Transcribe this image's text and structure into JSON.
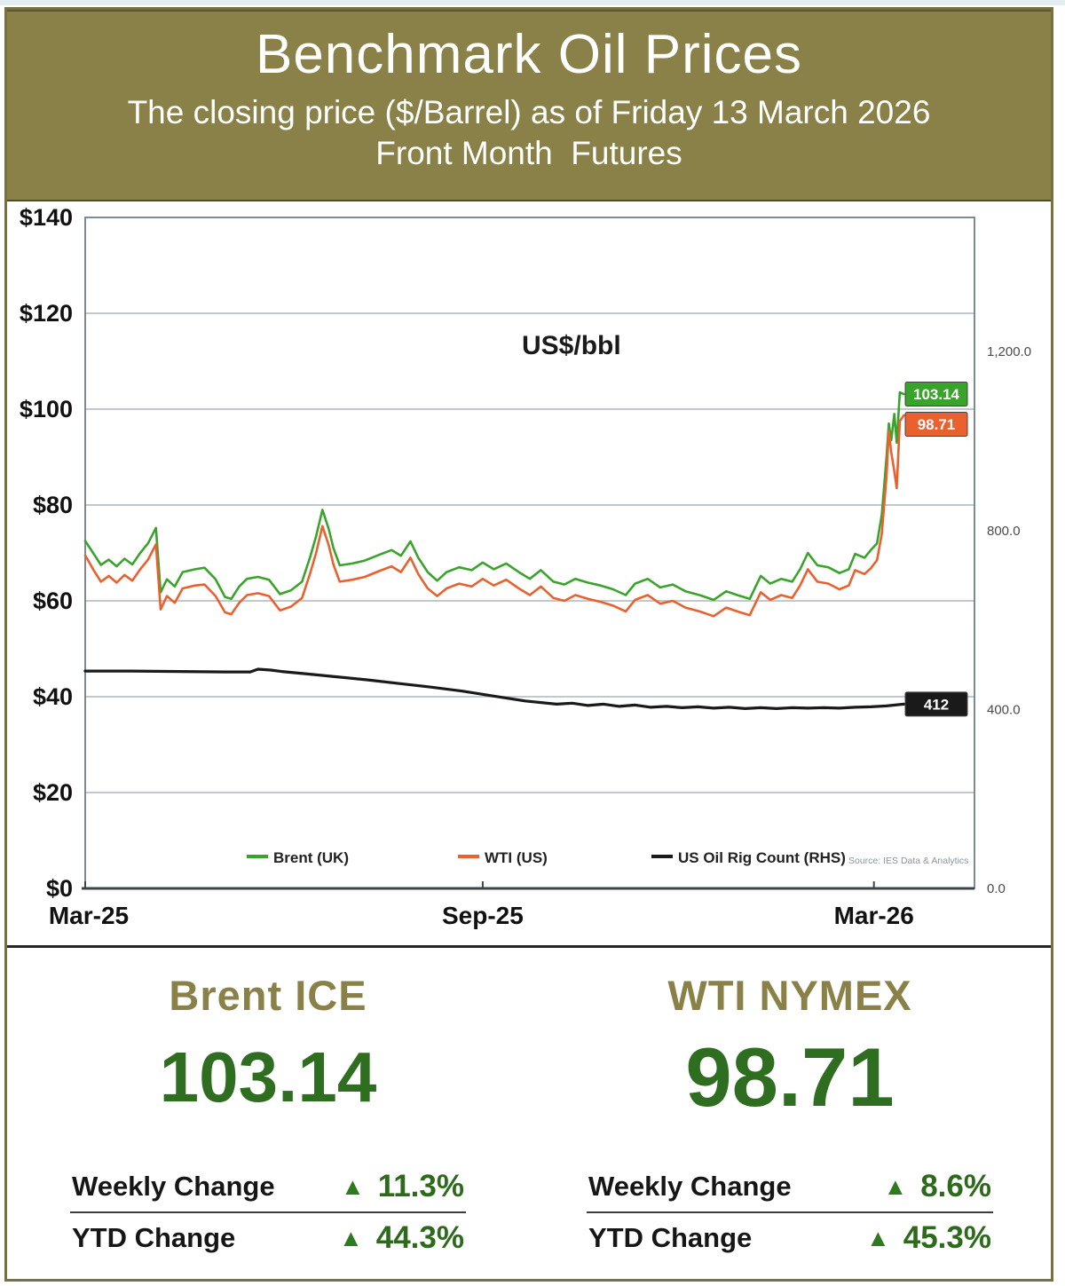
{
  "header": {
    "title": "Benchmark Oil Prices",
    "subtitle1": "The closing price ($/Barrel) as of Friday 13 March 2026",
    "subtitle2": "Front Month  Futures"
  },
  "icons": {
    "up_arrow": "▲"
  },
  "colors": {
    "olive": "#8a8148",
    "brent_green": "#3aa32c",
    "wti_orange": "#e8612f",
    "rig_black": "#1a1a1a",
    "dark_green": "#2f6e20",
    "grid_gray": "#aeb7bb"
  },
  "chart_data": {
    "type": "line",
    "title": "US$/bbl",
    "source_note": "Source: IES Data & Analytics",
    "legend_position": "bottom-inside",
    "grid": true,
    "x_axis": {
      "max_weeks": 56.6,
      "ticks": [
        {
          "x": 0,
          "label": "Mar-25"
        },
        {
          "x": 25.3,
          "label": "Sep-25"
        },
        {
          "x": 50.2,
          "label": "Mar-26"
        }
      ]
    },
    "y_left": {
      "min": 0,
      "max": 140,
      "tick_step": 20,
      "tick_prefix": "$"
    },
    "y_right": {
      "min": 0,
      "max": 1500,
      "labels": [
        {
          "v": 0,
          "t": "0.0"
        },
        {
          "v": 400,
          "t": "400.0"
        },
        {
          "v": 800,
          "t": "800.0"
        },
        {
          "v": 1200,
          "t": "1,200.0"
        }
      ]
    },
    "series": [
      {
        "id": "brent-line",
        "name": "Brent (UK)",
        "axis": "left",
        "color": "#3aa32c",
        "width": 2.6,
        "end_label": "103.14",
        "end_value": 103.14,
        "points": [
          [
            0,
            72.5
          ],
          [
            0.5,
            70
          ],
          [
            1,
            67.5
          ],
          [
            1.5,
            68.6
          ],
          [
            2,
            67.2
          ],
          [
            2.5,
            68.8
          ],
          [
            3,
            67.6
          ],
          [
            3.5,
            70
          ],
          [
            4,
            72
          ],
          [
            4.5,
            75.2
          ],
          [
            4.8,
            61.8
          ],
          [
            5.2,
            64.5
          ],
          [
            5.7,
            63
          ],
          [
            6.2,
            66
          ],
          [
            7,
            66.6
          ],
          [
            7.6,
            66.9
          ],
          [
            8.3,
            64.5
          ],
          [
            8.9,
            60.8
          ],
          [
            9.3,
            60.4
          ],
          [
            9.8,
            63
          ],
          [
            10.3,
            64.6
          ],
          [
            11,
            65
          ],
          [
            11.7,
            64.4
          ],
          [
            12.4,
            61.4
          ],
          [
            13.1,
            62.2
          ],
          [
            13.8,
            64
          ],
          [
            14.3,
            69
          ],
          [
            14.7,
            73.5
          ],
          [
            15.1,
            79
          ],
          [
            15.5,
            75
          ],
          [
            15.8,
            71
          ],
          [
            16.2,
            67.4
          ],
          [
            17,
            67.8
          ],
          [
            17.8,
            68.4
          ],
          [
            18.7,
            69.6
          ],
          [
            19.5,
            70.6
          ],
          [
            20.1,
            69.4
          ],
          [
            20.7,
            72.4
          ],
          [
            21.2,
            69
          ],
          [
            21.8,
            66
          ],
          [
            22.4,
            64.2
          ],
          [
            23,
            66
          ],
          [
            23.8,
            67
          ],
          [
            24.6,
            66.4
          ],
          [
            25.3,
            68
          ],
          [
            26,
            66.6
          ],
          [
            26.8,
            67.8
          ],
          [
            27.6,
            66
          ],
          [
            28.3,
            64.6
          ],
          [
            29,
            66.4
          ],
          [
            29.8,
            64
          ],
          [
            30.5,
            63.4
          ],
          [
            31.2,
            64.6
          ],
          [
            32,
            63.8
          ],
          [
            32.8,
            63.2
          ],
          [
            33.6,
            62.4
          ],
          [
            34.4,
            61.2
          ],
          [
            35,
            63.6
          ],
          [
            35.8,
            64.6
          ],
          [
            36.6,
            62.8
          ],
          [
            37.4,
            63.4
          ],
          [
            38.2,
            62
          ],
          [
            39.1,
            61.2
          ],
          [
            40,
            60.2
          ],
          [
            40.8,
            62
          ],
          [
            41.5,
            61.2
          ],
          [
            42.3,
            60.4
          ],
          [
            43,
            65.2
          ],
          [
            43.6,
            63.6
          ],
          [
            44.3,
            64.6
          ],
          [
            45,
            64
          ],
          [
            45.5,
            66.6
          ],
          [
            46,
            70
          ],
          [
            46.6,
            67.4
          ],
          [
            47.3,
            67
          ],
          [
            48,
            65.8
          ],
          [
            48.6,
            66.6
          ],
          [
            49,
            69.8
          ],
          [
            49.6,
            69
          ],
          [
            50,
            70.6
          ],
          [
            50.4,
            72
          ],
          [
            50.7,
            78
          ],
          [
            51,
            90
          ],
          [
            51.15,
            97
          ],
          [
            51.3,
            93.5
          ],
          [
            51.5,
            99
          ],
          [
            51.65,
            93
          ],
          [
            51.85,
            103.5
          ],
          [
            52.1,
            103.14
          ]
        ]
      },
      {
        "id": "wti-line",
        "name": "WTI (US)",
        "axis": "left",
        "color": "#e8612f",
        "width": 2.6,
        "end_label": "98.71",
        "end_value": 98.71,
        "points": [
          [
            0,
            69.5
          ],
          [
            0.5,
            66.6
          ],
          [
            1,
            64
          ],
          [
            1.5,
            65.2
          ],
          [
            2,
            63.8
          ],
          [
            2.5,
            65.4
          ],
          [
            3,
            64.2
          ],
          [
            3.5,
            66.6
          ],
          [
            4,
            68.6
          ],
          [
            4.5,
            71.8
          ],
          [
            4.8,
            58.2
          ],
          [
            5.2,
            61
          ],
          [
            5.7,
            59.6
          ],
          [
            6.2,
            62.6
          ],
          [
            7,
            63.2
          ],
          [
            7.6,
            63.4
          ],
          [
            8.3,
            61
          ],
          [
            8.9,
            57.6
          ],
          [
            9.3,
            57.2
          ],
          [
            9.8,
            59.6
          ],
          [
            10.3,
            61.2
          ],
          [
            11,
            61.6
          ],
          [
            11.7,
            61
          ],
          [
            12.4,
            58
          ],
          [
            13.1,
            58.8
          ],
          [
            13.8,
            60.6
          ],
          [
            14.3,
            65.6
          ],
          [
            14.7,
            70
          ],
          [
            15.1,
            75.6
          ],
          [
            15.5,
            71.6
          ],
          [
            15.8,
            67.6
          ],
          [
            16.2,
            64
          ],
          [
            17,
            64.4
          ],
          [
            17.8,
            65
          ],
          [
            18.7,
            66.2
          ],
          [
            19.5,
            67.2
          ],
          [
            20.1,
            66
          ],
          [
            20.7,
            69
          ],
          [
            21.2,
            65.6
          ],
          [
            21.8,
            62.6
          ],
          [
            22.4,
            61
          ],
          [
            23,
            62.6
          ],
          [
            23.8,
            63.6
          ],
          [
            24.6,
            63
          ],
          [
            25.3,
            64.6
          ],
          [
            26,
            63.2
          ],
          [
            26.8,
            64.4
          ],
          [
            27.6,
            62.6
          ],
          [
            28.3,
            61.2
          ],
          [
            29,
            63
          ],
          [
            29.8,
            60.6
          ],
          [
            30.5,
            60
          ],
          [
            31.2,
            61.2
          ],
          [
            32,
            60.4
          ],
          [
            32.8,
            59.8
          ],
          [
            33.6,
            59
          ],
          [
            34.4,
            57.8
          ],
          [
            35,
            60.2
          ],
          [
            35.8,
            61.2
          ],
          [
            36.6,
            59.4
          ],
          [
            37.4,
            60
          ],
          [
            38.2,
            58.6
          ],
          [
            39.1,
            57.8
          ],
          [
            40,
            56.8
          ],
          [
            40.8,
            58.6
          ],
          [
            41.5,
            57.8
          ],
          [
            42.3,
            57
          ],
          [
            43,
            61.8
          ],
          [
            43.6,
            60.2
          ],
          [
            44.3,
            61.2
          ],
          [
            45,
            60.6
          ],
          [
            45.5,
            63.2
          ],
          [
            46,
            66.6
          ],
          [
            46.6,
            64
          ],
          [
            47.3,
            63.6
          ],
          [
            48,
            62.4
          ],
          [
            48.6,
            63.2
          ],
          [
            49,
            66.4
          ],
          [
            49.6,
            65.6
          ],
          [
            50,
            66.8
          ],
          [
            50.4,
            68.5
          ],
          [
            50.7,
            74
          ],
          [
            51,
            86
          ],
          [
            51.15,
            95.5
          ],
          [
            51.3,
            91
          ],
          [
            51.5,
            87
          ],
          [
            51.65,
            83.5
          ],
          [
            51.85,
            97.5
          ],
          [
            52.1,
            98.71
          ]
        ]
      },
      {
        "id": "rig-count-line",
        "name": "US Oil Rig Count (RHS)",
        "axis": "right",
        "color": "#1a1a1a",
        "width": 3.2,
        "end_label": "412",
        "end_value": 412,
        "points": [
          [
            0,
            486
          ],
          [
            3,
            486
          ],
          [
            6,
            485
          ],
          [
            9,
            484
          ],
          [
            10.5,
            484
          ],
          [
            11,
            490
          ],
          [
            11.8,
            488
          ],
          [
            12.5,
            485
          ],
          [
            14,
            480
          ],
          [
            16,
            473
          ],
          [
            18,
            466
          ],
          [
            20,
            458
          ],
          [
            22,
            450
          ],
          [
            24,
            441
          ],
          [
            26,
            430
          ],
          [
            28,
            419
          ],
          [
            30,
            412
          ],
          [
            31,
            414
          ],
          [
            32,
            409
          ],
          [
            33,
            412
          ],
          [
            34,
            407
          ],
          [
            35,
            410
          ],
          [
            36,
            405
          ],
          [
            37,
            407
          ],
          [
            38,
            404
          ],
          [
            39,
            406
          ],
          [
            40,
            403
          ],
          [
            41,
            405
          ],
          [
            42,
            402
          ],
          [
            43,
            404
          ],
          [
            44,
            402
          ],
          [
            45,
            404
          ],
          [
            46,
            403
          ],
          [
            47,
            404
          ],
          [
            48,
            403
          ],
          [
            49,
            405
          ],
          [
            50,
            406
          ],
          [
            51,
            408
          ],
          [
            52.1,
            412
          ]
        ]
      }
    ]
  },
  "stats": {
    "left": {
      "title": "Brent ICE",
      "value": "103.14",
      "rows": [
        {
          "label": "Weekly Change",
          "change": "11.3%"
        },
        {
          "label": "YTD Change",
          "change": "44.3%"
        }
      ]
    },
    "right": {
      "title": "WTI NYMEX",
      "value": "98.71",
      "rows": [
        {
          "label": "Weekly Change",
          "change": "8.6%"
        },
        {
          "label": "YTD Change",
          "change": "45.3%"
        }
      ]
    }
  }
}
